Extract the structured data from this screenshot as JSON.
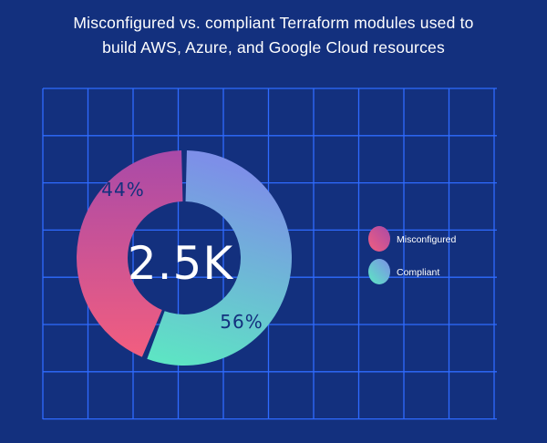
{
  "title_lines": [
    "Misconfigured vs. compliant Terraform modules used to",
    "build AWS, Azure, and Google Cloud resources"
  ],
  "center_label": "2.5K",
  "colors": {
    "background": "#13307e",
    "grid": "#2f6bff",
    "misconfigured_start": "#f25e7f",
    "misconfigured_end": "#a94aa8",
    "compliant_start": "#5ce8c2",
    "compliant_end": "#7d8fe8"
  },
  "chart_data": {
    "type": "pie",
    "style": "donut",
    "center_text": "2.5K",
    "categories": [
      "Misconfigured",
      "Compliant"
    ],
    "values": [
      44,
      56
    ],
    "labels": [
      "44%",
      "56%"
    ],
    "legend": {
      "placement": "right",
      "entries": [
        "Misconfigured",
        "Compliant"
      ]
    },
    "grid": true
  }
}
